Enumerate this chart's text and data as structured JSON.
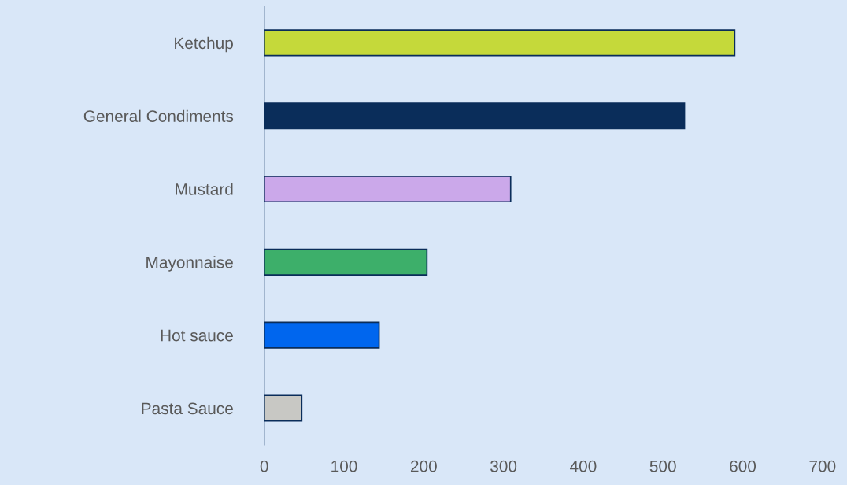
{
  "chart_data": {
    "type": "bar",
    "orientation": "horizontal",
    "categories": [
      "Ketchup",
      "General Condiments",
      "Mustard",
      "Mayonnaise",
      "Hot sauce",
      "Pasta Sauce"
    ],
    "values": [
      590,
      527,
      309,
      204,
      144,
      47
    ],
    "colors": [
      "#c5d93a",
      "#0a2d5a",
      "#cba8ea",
      "#3daf6a",
      "#0066ee",
      "#c8c8c4"
    ],
    "xlim": [
      0,
      700
    ],
    "xticks": [
      0,
      100,
      200,
      300,
      400,
      500,
      600,
      700
    ],
    "grid": false,
    "legend": false
  }
}
